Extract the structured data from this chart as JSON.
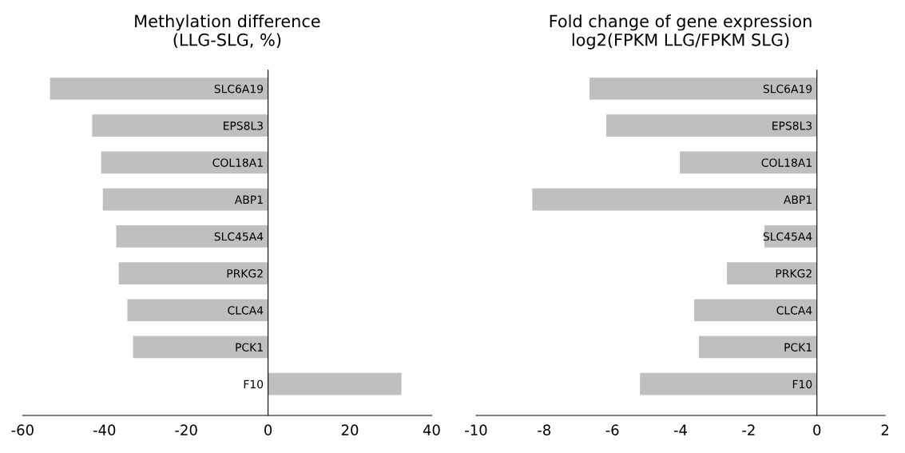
{
  "chart_data": [
    {
      "type": "bar",
      "orientation": "horizontal",
      "title": "Methylation difference\n(LLG-SLG, %)",
      "categories": [
        "SLC6A19",
        "EPS8L3",
        "COL18A1",
        "ABP1",
        "SLC45A4",
        "PRKG2",
        "CLCA4",
        "PCK1",
        "F10"
      ],
      "values": [
        -53.3,
        -43,
        -40.8,
        -40.4,
        -37.1,
        -36.5,
        -34.4,
        -33,
        32.6
      ],
      "color": "#bfbfbf",
      "xlim": [
        -60,
        40
      ],
      "xticks": [
        -60,
        -40,
        -20,
        0,
        20,
        40
      ],
      "grid": false
    },
    {
      "type": "bar",
      "orientation": "horizontal",
      "title": "Fold change of gene expression\nlog2(FPKM LLG/FPKM SLG)",
      "categories": [
        "SLC6A19",
        "EPS8L3",
        "COL18A1",
        "ABP1",
        "SLC45A4",
        "PRKG2",
        "CLCA4",
        "PCK1",
        "F10"
      ],
      "values": [
        -6.67,
        -6.18,
        -4.02,
        -8.35,
        -1.54,
        -2.64,
        -3.6,
        -3.46,
        -5.19
      ],
      "color": "#bfbfbf",
      "xlim": [
        -10,
        2
      ],
      "xticks": [
        -10,
        -8,
        -6,
        -4,
        -2,
        0,
        2
      ],
      "grid": false
    }
  ]
}
